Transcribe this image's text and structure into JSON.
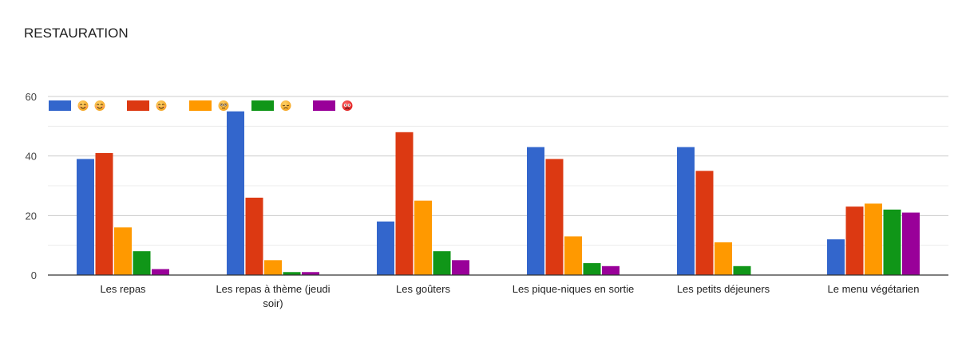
{
  "chart_data": {
    "type": "bar",
    "title": "RESTAURATION",
    "xlabel": "",
    "ylabel": "",
    "ylim": [
      0,
      60
    ],
    "yticks": [
      0,
      20,
      40,
      60
    ],
    "grid": true,
    "legend_position": "top-left",
    "categories": [
      "Les repas",
      "Les repas à thème (jeudi soir)",
      "Les goûters",
      "Les pique-niques en sortie",
      "Les petits déjeuners",
      "Le menu végétarien"
    ],
    "series": [
      {
        "legend_icon": "very-satisfied-double-smiley-icon",
        "color": "#3366cc",
        "values": [
          39,
          55,
          18,
          43,
          43,
          12
        ]
      },
      {
        "legend_icon": "satisfied-smiley-icon",
        "color": "#dc3912",
        "values": [
          41,
          26,
          48,
          39,
          35,
          23
        ]
      },
      {
        "legend_icon": "neutral-face-icon",
        "color": "#ff9900",
        "values": [
          16,
          5,
          25,
          13,
          11,
          24
        ]
      },
      {
        "legend_icon": "disappointed-face-icon",
        "color": "#109618",
        "values": [
          8,
          1,
          8,
          4,
          3,
          22
        ]
      },
      {
        "legend_icon": "angry-face-icon",
        "color": "#990099",
        "values": [
          2,
          1,
          5,
          3,
          0,
          21
        ]
      }
    ]
  }
}
